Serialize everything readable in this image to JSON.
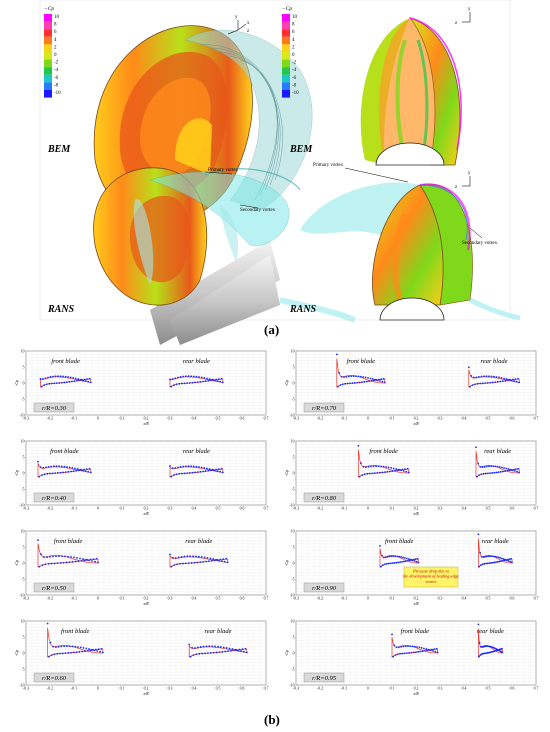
{
  "figure_a": {
    "caption": "(a)",
    "legend_title": "−Cp",
    "legend_ticks": [
      "10",
      "8",
      "6",
      "4",
      "2",
      "0",
      "-2",
      "-4",
      "-6",
      "-8",
      "-10"
    ],
    "legend_colors": [
      "#ff00ff",
      "#ff3fb0",
      "#ff2f2f",
      "#ff7a1a",
      "#ffd21a",
      "#d8e81a",
      "#7fd81a",
      "#22c84a",
      "#1ac8c8",
      "#2a7aff",
      "#1a1aff"
    ],
    "panels": [
      {
        "label": "BEM",
        "annotations": []
      },
      {
        "label": "BEM",
        "annotations": []
      },
      {
        "label": "RANS",
        "annotations": [
          "Primary vortex",
          "Secondary vortex"
        ]
      },
      {
        "label": "RANS",
        "annotations": [
          "Primary vortex",
          "Secondary vortex"
        ]
      }
    ],
    "axis_letters": [
      "y",
      "x",
      "z"
    ]
  },
  "figure_b": {
    "caption": "(b)",
    "ylabel": "-Cp",
    "xlabel": "x/R",
    "yticks": [
      "10",
      "5",
      "0",
      "-5",
      "-10"
    ],
    "xticks": [
      "-0.3",
      "-0.2",
      "-0.1",
      "0",
      "0.1",
      "0.2",
      "0.3",
      "0.4",
      "0.5",
      "0.6",
      "0.7"
    ],
    "blade_labels": {
      "front": "front blade",
      "rear": "rear blade"
    },
    "annotation": "Pressure drop due to the development of leading-edge vortex",
    "colors": {
      "line": "#e8332a",
      "points": "#1a2aff"
    }
  },
  "chart_data": [
    {
      "type": "line",
      "radius": "r/R=0.30",
      "xlim": [
        -0.3,
        0.7
      ],
      "ylim": [
        -10,
        10
      ],
      "series": [
        {
          "blade": "front",
          "x_le": -0.24,
          "x_te": -0.03,
          "peak": 1.0
        },
        {
          "blade": "rear",
          "x_le": 0.3,
          "x_te": 0.52,
          "peak": 0.8
        }
      ]
    },
    {
      "type": "line",
      "radius": "r/R=0.40",
      "xlim": [
        -0.3,
        0.7
      ],
      "ylim": [
        -10,
        10
      ],
      "series": [
        {
          "blade": "front",
          "x_le": -0.25,
          "x_te": -0.03,
          "peak": 3.5
        },
        {
          "blade": "rear",
          "x_le": 0.3,
          "x_te": 0.52,
          "peak": 2.0
        }
      ]
    },
    {
      "type": "line",
      "radius": "r/R=0.50",
      "xlim": [
        -0.3,
        0.7
      ],
      "ylim": [
        -10,
        10
      ],
      "series": [
        {
          "blade": "front",
          "x_le": -0.25,
          "x_te": 0.0,
          "peak": 7.5
        },
        {
          "blade": "rear",
          "x_le": 0.3,
          "x_te": 0.54,
          "peak": 2.5
        }
      ]
    },
    {
      "type": "line",
      "radius": "r/R=0.60",
      "xlim": [
        -0.3,
        0.7
      ],
      "ylim": [
        -10,
        10
      ],
      "series": [
        {
          "blade": "front",
          "x_le": -0.21,
          "x_te": 0.02,
          "peak": 9.8
        },
        {
          "blade": "rear",
          "x_le": 0.38,
          "x_te": 0.62,
          "peak": 2.5
        }
      ]
    },
    {
      "type": "line",
      "radius": "r/R=0.70",
      "xlim": [
        -0.3,
        0.7
      ],
      "ylim": [
        -10,
        10
      ],
      "series": [
        {
          "blade": "front",
          "x_le": -0.13,
          "x_te": 0.07,
          "peak": 9.5
        },
        {
          "blade": "rear",
          "x_le": 0.42,
          "x_te": 0.63,
          "peak": 5.0
        }
      ]
    },
    {
      "type": "line",
      "radius": "r/R=0.80",
      "xlim": [
        -0.3,
        0.7
      ],
      "ylim": [
        -10,
        10
      ],
      "series": [
        {
          "blade": "front",
          "x_le": -0.04,
          "x_te": 0.17,
          "peak": 9.0
        },
        {
          "blade": "rear",
          "x_le": 0.45,
          "x_te": 0.63,
          "peak": 8.5
        }
      ]
    },
    {
      "type": "line",
      "radius": "r/R=0.90",
      "xlim": [
        -0.3,
        0.7
      ],
      "ylim": [
        -10,
        10
      ],
      "series": [
        {
          "blade": "front",
          "x_le": 0.05,
          "x_te": 0.21,
          "peak": 5.5
        },
        {
          "blade": "rear",
          "x_le": 0.46,
          "x_te": 0.6,
          "peak": 9.5
        }
      ]
    },
    {
      "type": "line",
      "radius": "r/R=0.95",
      "xlim": [
        -0.3,
        0.7
      ],
      "ylim": [
        -10,
        10
      ],
      "series": [
        {
          "blade": "front",
          "x_le": 0.1,
          "x_te": 0.29,
          "peak": 6.0
        },
        {
          "blade": "rear",
          "x_le": 0.46,
          "x_te": 0.56,
          "peak": 9.5
        }
      ]
    }
  ]
}
